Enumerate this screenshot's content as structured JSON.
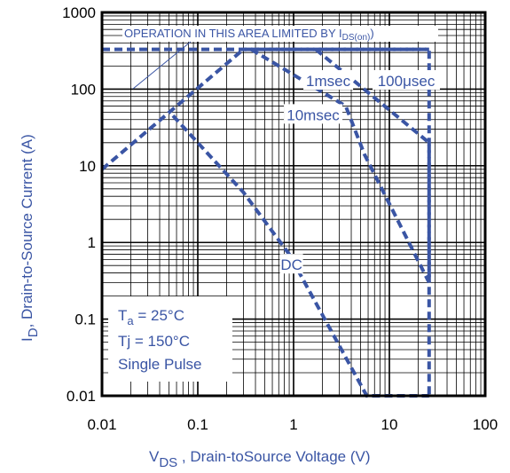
{
  "chart_data": {
    "type": "line",
    "xscale": "log",
    "yscale": "log",
    "xlim": [
      0.01,
      100
    ],
    "ylim": [
      0.01,
      1000
    ],
    "grid": true,
    "x_tick_labels": [
      "0.01",
      "0.1",
      "1",
      "10",
      "100"
    ],
    "y_tick_labels": [
      "0.01",
      "0.1",
      "1",
      "10",
      "100",
      "1000"
    ],
    "xlabel": {
      "main": "V",
      "sub": "DS",
      "rest": " , Drain-toSource Voltage (V)"
    },
    "ylabel": {
      "main": "I",
      "sub": "D",
      "rest": ",  Drain-to-Source Current (A)"
    },
    "series": [
      {
        "name": "100μsec",
        "x": [
          0.01,
          0.3,
          26,
          26
        ],
        "y": [
          9,
          330,
          330,
          0.01
        ]
      },
      {
        "name": "1msec",
        "x": [
          1.7,
          26,
          26
        ],
        "y": [
          330,
          20,
          0.3
        ]
      },
      {
        "name": "10msec",
        "x": [
          0.36,
          3.5,
          5.5,
          26
        ],
        "y": [
          330,
          60,
          14,
          0.3
        ]
      },
      {
        "name": "DC",
        "x": [
          0.055,
          0.1,
          0.3,
          0.9,
          5.8,
          6,
          26
        ],
        "y": [
          45,
          20,
          4.5,
          0.7,
          0.01,
          0.01,
          0.01
        ]
      }
    ],
    "limit_line": {
      "y": 330,
      "label": "OPERATION IN THIS AREA LIMITED BY",
      "label_sub": "DS(on)",
      "label_tail": ")"
    },
    "annotations": {
      "1msec": {
        "x": 2.3,
        "y": 125
      },
      "100μsec": {
        "x": 15,
        "y": 125
      },
      "10msec": {
        "x": 1.6,
        "y": 45
      },
      "DC": {
        "x": 0.95,
        "y": 0.5
      }
    },
    "info_box": {
      "line1_main": "T",
      "line1_sub": "a",
      "line1_rest": " = 25°C",
      "line2": "Tj = 150°C",
      "line3": "Single Pulse"
    },
    "colors": {
      "series": "#3a55a4",
      "grid": "#000000",
      "text": "#3a55a4"
    }
  }
}
